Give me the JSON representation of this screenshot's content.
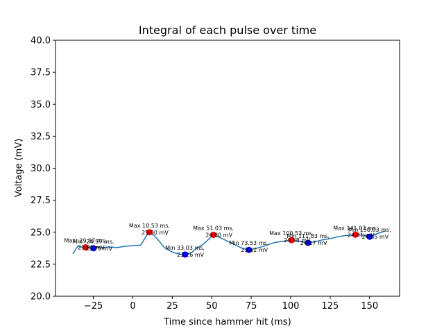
{
  "chart_data": {
    "type": "line",
    "title": "Integral of each pulse over time",
    "xlabel": "Time since hammer hit (ms)",
    "ylabel": "Voltage (mV)",
    "xlim": [
      -49,
      169
    ],
    "ylim": [
      20,
      40
    ],
    "xticks": [
      -25,
      0,
      25,
      50,
      75,
      100,
      125,
      150
    ],
    "xtick_labels": [
      "−25",
      "0",
      "25",
      "50",
      "75",
      "100",
      "125",
      "150"
    ],
    "yticks": [
      20,
      22.5,
      25,
      27.5,
      30,
      32.5,
      35,
      37.5,
      40
    ],
    "ytick_labels": [
      "20.0",
      "22.5",
      "25.0",
      "27.5",
      "30.0",
      "32.5",
      "35.0",
      "37.5",
      "40.0"
    ],
    "grid": false,
    "line_color": "#1f77b4",
    "max_color": "#ff0000",
    "min_color": "#0000ff",
    "series": [
      {
        "x": [
          -38,
          -35,
          -33,
          -30,
          -27,
          -25,
          -20,
          -15,
          -10,
          -5,
          0,
          5,
          10,
          13,
          16,
          20,
          25,
          30,
          33,
          37,
          40,
          45,
          51,
          55,
          60,
          65,
          70,
          74,
          80,
          85,
          90,
          95,
          101,
          105,
          111,
          115,
          120,
          125,
          130,
          135,
          141,
          145,
          150,
          155,
          160
        ],
        "y": [
          23.3,
          23.9,
          23.85,
          23.82,
          23.8,
          23.78,
          23.8,
          23.85,
          23.8,
          23.9,
          23.95,
          24.0,
          25.0,
          24.8,
          24.4,
          23.8,
          23.45,
          23.27,
          23.26,
          23.4,
          23.7,
          24.1,
          24.8,
          24.6,
          24.3,
          24.0,
          23.7,
          23.62,
          23.8,
          24.0,
          24.2,
          24.3,
          24.38,
          24.3,
          24.17,
          24.25,
          24.4,
          24.5,
          24.65,
          24.75,
          24.81,
          24.78,
          24.65,
          24.9,
          25.1
        ]
      }
    ],
    "maxima": [
      {
        "x": -29.97,
        "y": 23.82,
        "label_line1": "Max -29.97 ms,",
        "label_line2": "23.82 mV"
      },
      {
        "x": 10.53,
        "y": 25.0,
        "label_line1": "Max 10.53 ms,",
        "label_line2": "25.00 mV"
      },
      {
        "x": 51.03,
        "y": 24.8,
        "label_line1": "Max 51.03 ms,",
        "label_line2": "24.80 mV"
      },
      {
        "x": 100.53,
        "y": 24.38,
        "label_line1": "Max 100.53 ms,",
        "label_line2": "24.38 mV"
      },
      {
        "x": 141.03,
        "y": 24.81,
        "label_line1": "Max 141.03 ms,",
        "label_line2": "24.81 mV"
      }
    ],
    "minima": [
      {
        "x": -24.97,
        "y": 23.75,
        "label_line1": "Min -24.97 ms,",
        "label_line2": "23.75 mV"
      },
      {
        "x": 33.03,
        "y": 23.26,
        "label_line1": "Min 33.03 ms,",
        "label_line2": "23.26 mV"
      },
      {
        "x": 73.53,
        "y": 23.62,
        "label_line1": "Min 73.53 ms,",
        "label_line2": "23.62 mV"
      },
      {
        "x": 111.03,
        "y": 24.17,
        "label_line1": "Min 111.03 ms,",
        "label_line2": "24.17 mV"
      },
      {
        "x": 150.03,
        "y": 24.65,
        "label_line1": "Min 150.03 ms,",
        "label_line2": "24.65 mV"
      }
    ]
  }
}
